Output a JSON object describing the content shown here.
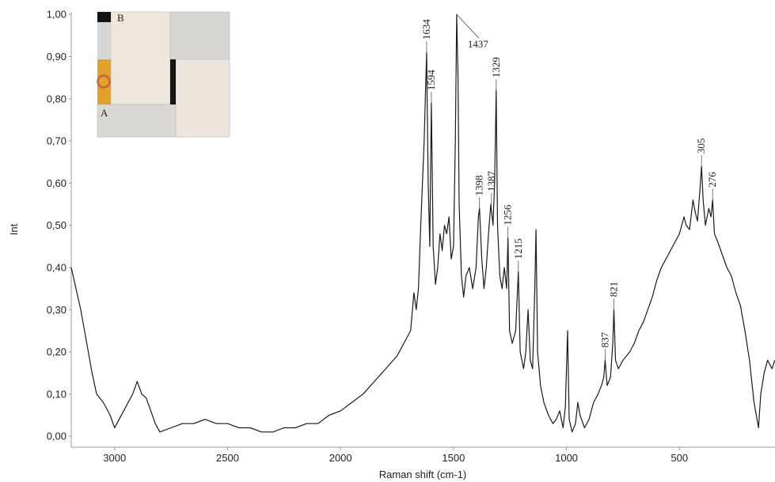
{
  "chart_data": {
    "type": "line",
    "y_label": "Int",
    "x_label": "Raman shift (cm-1)",
    "xlim": [
      3192,
      77
    ],
    "ylim": [
      -0.026,
      1.006
    ],
    "xticks": [
      3000,
      2500,
      2000,
      1500,
      1000,
      500
    ],
    "yticks": [
      {
        "value": 0,
        "label": "0,00"
      },
      {
        "value": 0.1,
        "label": "0,10"
      },
      {
        "value": 0.2,
        "label": "0,20"
      },
      {
        "value": 0.3,
        "label": "0,30"
      },
      {
        "value": 0.4,
        "label": "0,40"
      },
      {
        "value": 0.5,
        "label": "0,50"
      },
      {
        "value": 0.6,
        "label": "0,60"
      },
      {
        "value": 0.7,
        "label": "0,70"
      },
      {
        "value": 0.8,
        "label": "0,80"
      },
      {
        "value": 0.9,
        "label": "0,90"
      },
      {
        "value": 1,
        "label": "1,00"
      }
    ],
    "series": [
      {
        "color": "#1a1a1a",
        "x": [
          3192,
          3150,
          3100,
          3080,
          3050,
          3020,
          3000,
          2980,
          2950,
          2920,
          2900,
          2880,
          2860,
          2840,
          2820,
          2800,
          2750,
          2700,
          2650,
          2600,
          2550,
          2500,
          2450,
          2400,
          2350,
          2300,
          2250,
          2200,
          2150,
          2100,
          2050,
          2000,
          1950,
          1900,
          1850,
          1800,
          1750,
          1720,
          1690,
          1675,
          1665,
          1655,
          1645,
          1630,
          1619,
          1612,
          1605,
          1598,
          1590,
          1580,
          1570,
          1560,
          1550,
          1540,
          1530,
          1520,
          1510,
          1500,
          1492,
          1486,
          1480,
          1475,
          1465,
          1455,
          1445,
          1430,
          1415,
          1400,
          1390,
          1385,
          1375,
          1365,
          1355,
          1345,
          1335,
          1325,
          1318,
          1311,
          1305,
          1295,
          1285,
          1275,
          1265,
          1259,
          1252,
          1240,
          1225,
          1213,
          1205,
          1190,
          1180,
          1170,
          1160,
          1150,
          1140,
          1135,
          1128,
          1115,
          1100,
          1080,
          1060,
          1045,
          1030,
          1015,
          1005,
          995,
          988,
          975,
          960,
          950,
          940,
          920,
          900,
          880,
          860,
          845,
          835,
          829,
          820,
          805,
          795,
          790,
          783,
          770,
          750,
          720,
          700,
          680,
          660,
          640,
          620,
          600,
          580,
          560,
          540,
          520,
          500,
          480,
          470,
          455,
          440,
          430,
          420,
          410,
          402,
          395,
          385,
          370,
          360,
          353,
          345,
          330,
          310,
          290,
          270,
          250,
          230,
          210,
          190,
          170,
          150,
          140,
          125,
          110,
          90,
          78
        ],
        "values": [
          0.4,
          0.3,
          0.15,
          0.1,
          0.08,
          0.05,
          0.02,
          0.04,
          0.07,
          0.1,
          0.13,
          0.1,
          0.09,
          0.06,
          0.03,
          0.01,
          0.02,
          0.03,
          0.03,
          0.04,
          0.03,
          0.03,
          0.02,
          0.02,
          0.01,
          0.01,
          0.02,
          0.02,
          0.03,
          0.03,
          0.05,
          0.06,
          0.08,
          0.1,
          0.13,
          0.16,
          0.19,
          0.22,
          0.25,
          0.34,
          0.3,
          0.35,
          0.5,
          0.7,
          0.91,
          0.6,
          0.45,
          0.79,
          0.45,
          0.36,
          0.4,
          0.48,
          0.44,
          0.5,
          0.48,
          0.52,
          0.42,
          0.45,
          0.7,
          1.0,
          0.85,
          0.55,
          0.38,
          0.33,
          0.38,
          0.4,
          0.35,
          0.4,
          0.52,
          0.54,
          0.42,
          0.35,
          0.4,
          0.48,
          0.55,
          0.5,
          0.6,
          0.82,
          0.5,
          0.38,
          0.35,
          0.4,
          0.35,
          0.47,
          0.25,
          0.22,
          0.25,
          0.39,
          0.2,
          0.16,
          0.2,
          0.3,
          0.18,
          0.16,
          0.35,
          0.49,
          0.2,
          0.12,
          0.08,
          0.05,
          0.03,
          0.04,
          0.06,
          0.02,
          0.07,
          0.25,
          0.04,
          0.01,
          0.03,
          0.08,
          0.05,
          0.02,
          0.04,
          0.08,
          0.1,
          0.12,
          0.14,
          0.18,
          0.12,
          0.14,
          0.22,
          0.3,
          0.18,
          0.16,
          0.18,
          0.2,
          0.22,
          0.25,
          0.27,
          0.3,
          0.33,
          0.37,
          0.4,
          0.42,
          0.44,
          0.46,
          0.48,
          0.52,
          0.5,
          0.49,
          0.56,
          0.53,
          0.51,
          0.58,
          0.64,
          0.56,
          0.5,
          0.54,
          0.52,
          0.56,
          0.48,
          0.46,
          0.43,
          0.4,
          0.38,
          0.34,
          0.31,
          0.25,
          0.18,
          0.08,
          0.02,
          0.1,
          0.15,
          0.18,
          0.16,
          0.18
        ]
      }
    ],
    "annotations": [
      {
        "text": "1634",
        "x": 1619,
        "y": 0.91
      },
      {
        "text": "1594",
        "x": 1598,
        "y": 0.79
      },
      {
        "text": "1437",
        "x": 1486,
        "y": 1.0
      },
      {
        "text": "1329",
        "x": 1311,
        "y": 0.82
      },
      {
        "text": "1387",
        "x": 1332,
        "y": 0.55
      },
      {
        "text": "1398",
        "x": 1385,
        "y": 0.54
      },
      {
        "text": "1256",
        "x": 1259,
        "y": 0.47
      },
      {
        "text": "1215",
        "x": 1213,
        "y": 0.39
      },
      {
        "text": "837",
        "x": 829,
        "y": 0.18
      },
      {
        "text": "821",
        "x": 790,
        "y": 0.3
      },
      {
        "text": "305",
        "x": 402,
        "y": 0.64
      },
      {
        "text": "276",
        "x": 353,
        "y": 0.56
      }
    ]
  },
  "inset": {
    "labels": [
      "A",
      "B"
    ]
  }
}
